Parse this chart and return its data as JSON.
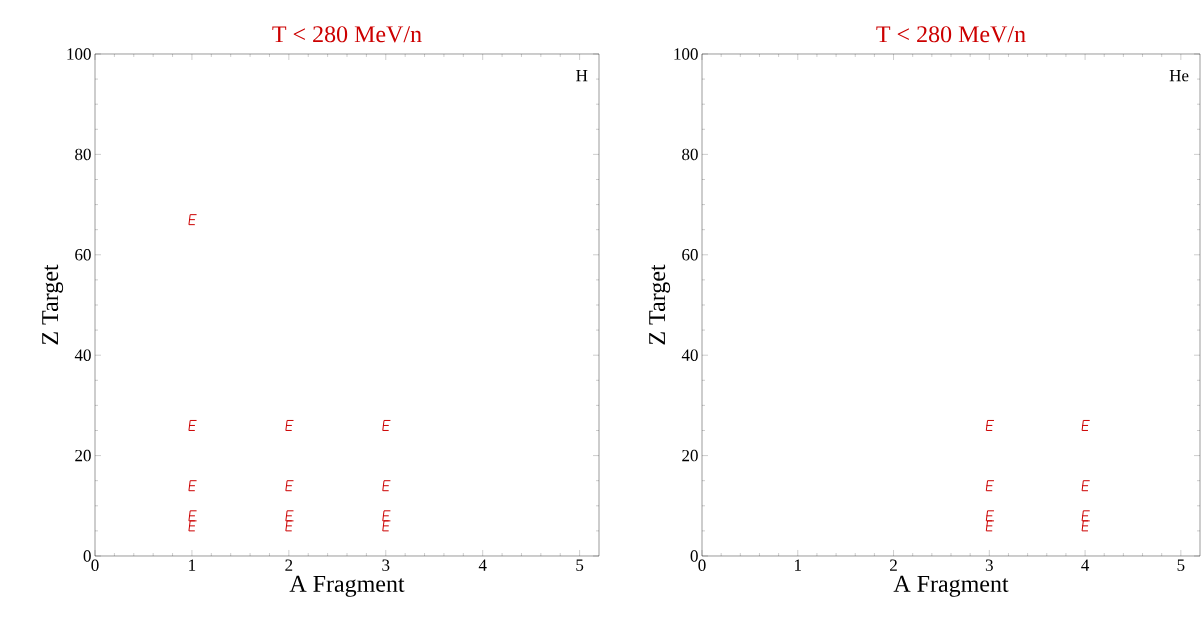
{
  "chart_data": [
    {
      "type": "scatter",
      "title": "T < 280 MeV/n",
      "xlabel": "A Fragment",
      "ylabel": "Z Target",
      "annotations": [
        "H"
      ],
      "xlim": [
        0,
        5.2
      ],
      "xticks": [
        0,
        1,
        2,
        3,
        4,
        5
      ],
      "ylim": [
        0,
        100
      ],
      "yticks": [
        0,
        20,
        40,
        60,
        80,
        100
      ],
      "series": [
        {
          "color": "#cc0000",
          "x": [
            1,
            1,
            1,
            1,
            1,
            2,
            2,
            2,
            2,
            3,
            3,
            3,
            3
          ],
          "values": [
            67,
            26,
            14,
            8,
            6,
            26,
            14,
            8,
            6,
            26,
            14,
            8,
            6
          ]
        }
      ]
    },
    {
      "type": "scatter",
      "title": "T < 280 MeV/n",
      "xlabel": "A Fragment",
      "ylabel": "Z Target",
      "annotations": [
        "He"
      ],
      "xlim": [
        0,
        5.2
      ],
      "xticks": [
        0,
        1,
        2,
        3,
        4,
        5
      ],
      "ylim": [
        0,
        100
      ],
      "yticks": [
        0,
        20,
        40,
        60,
        80,
        100
      ],
      "series": [
        {
          "color": "#cc0000",
          "x": [
            3,
            3,
            3,
            3,
            4,
            4,
            4,
            4
          ],
          "values": [
            26,
            14,
            8,
            6,
            26,
            14,
            8,
            6
          ]
        }
      ]
    }
  ]
}
